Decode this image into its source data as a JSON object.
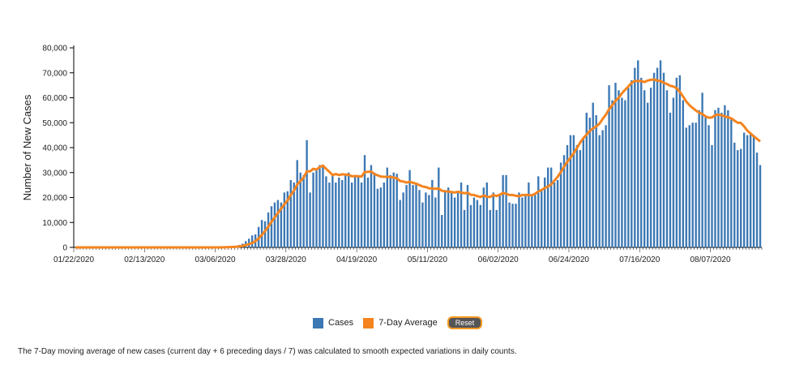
{
  "chart_data": {
    "type": "bar",
    "ylabel": "Number of New Cases",
    "ylim": [
      0,
      80000
    ],
    "yticks": [
      0,
      10000,
      20000,
      30000,
      40000,
      50000,
      60000,
      70000,
      80000
    ],
    "ytick_labels": [
      "0",
      "10,000",
      "20,000",
      "30,000",
      "40,000",
      "50,000",
      "60,000",
      "70,000",
      "80,000"
    ],
    "xtick_labels": [
      "01/22/2020",
      "02/13/2020",
      "03/06/2020",
      "03/28/2020",
      "04/19/2020",
      "05/11/2020",
      "06/02/2020",
      "06/24/2020",
      "07/16/2020",
      "08/07/2020"
    ],
    "start_date": "01/22/2020",
    "colors": {
      "cases": "#3c78b4",
      "average": "#f5841f"
    },
    "series": [
      {
        "name": "Cases",
        "values": [
          0,
          0,
          0,
          0,
          0,
          0,
          0,
          0,
          0,
          0,
          0,
          0,
          0,
          0,
          0,
          0,
          0,
          0,
          0,
          0,
          0,
          0,
          0,
          0,
          0,
          0,
          0,
          0,
          0,
          0,
          0,
          0,
          0,
          0,
          0,
          0,
          0,
          0,
          0,
          0,
          0,
          0,
          0,
          0,
          0,
          0,
          100,
          200,
          300,
          400,
          600,
          1000,
          1500,
          2500,
          3500,
          4800,
          5200,
          8200,
          11000,
          10500,
          14000,
          16500,
          18000,
          19000,
          18000,
          22000,
          22500,
          27000,
          26000,
          35000,
          30000,
          29000,
          43000,
          22000,
          30000,
          31000,
          33000,
          33000,
          28500,
          26000,
          29000,
          26000,
          28000,
          27000,
          29000,
          30000,
          26000,
          29000,
          29000,
          26000,
          37000,
          28000,
          33000,
          30000,
          23500,
          24000,
          26000,
          32000,
          29000,
          30000,
          29500,
          19000,
          22000,
          25000,
          31000,
          25000,
          26000,
          23000,
          18000,
          22000,
          21000,
          27000,
          20000,
          32000,
          13000,
          23000,
          24000,
          22000,
          20000,
          22000,
          26000,
          15000,
          25000,
          17000,
          20000,
          19000,
          17000,
          24000,
          26000,
          15000,
          22000,
          15000,
          21500,
          29000,
          29000,
          18000,
          17500,
          17500,
          22000,
          20000,
          21000,
          26000,
          21000,
          21000,
          28500,
          23000,
          28000,
          32000,
          32000,
          26000,
          27000,
          34000,
          37000,
          41000,
          45000,
          45000,
          41000,
          39000,
          44000,
          54000,
          52000,
          58000,
          53000,
          45000,
          47000,
          49000,
          65000,
          59000,
          66000,
          63000,
          60000,
          59000,
          64000,
          67000,
          72000,
          75000,
          68000,
          63000,
          58000,
          64000,
          70000,
          72000,
          75000,
          70000,
          63000,
          54000,
          60000,
          68000,
          69000,
          59000,
          48000,
          49000,
          50000,
          50000,
          55000,
          62000,
          53000,
          49000,
          41000,
          55000,
          56000,
          54000,
          57000,
          55000,
          52000,
          42000,
          39000,
          39500,
          46000,
          45000,
          46000,
          45000,
          38000,
          33000
        ]
      },
      {
        "name": "7-Day Average",
        "values": [
          0,
          0,
          0,
          0,
          0,
          0,
          0,
          0,
          0,
          0,
          0,
          0,
          0,
          0,
          0,
          0,
          0,
          0,
          0,
          0,
          0,
          0,
          0,
          0,
          0,
          0,
          0,
          0,
          0,
          0,
          0,
          0,
          0,
          0,
          0,
          0,
          0,
          0,
          0,
          0,
          0,
          0,
          0,
          0,
          0,
          0,
          50,
          80,
          120,
          180,
          260,
          400,
          600,
          900,
          1300,
          1800,
          2500,
          3600,
          5000,
          6500,
          8300,
          10200,
          12000,
          13800,
          15500,
          17300,
          18800,
          21000,
          22800,
          25200,
          26600,
          28000,
          30500,
          30500,
          31500,
          31200,
          32200,
          32800,
          31500,
          30300,
          29000,
          29400,
          29000,
          29300,
          29200,
          29100,
          28500,
          28600,
          28500,
          28400,
          30200,
          30300,
          30400,
          29400,
          28900,
          28400,
          28300,
          28300,
          28200,
          28000,
          27700,
          26600,
          26400,
          26000,
          26300,
          25900,
          25500,
          25000,
          24400,
          24200,
          23700,
          23600,
          23500,
          23600,
          22700,
          22500,
          22400,
          22200,
          22000,
          22300,
          22000,
          21700,
          21900,
          21100,
          21000,
          20600,
          20200,
          20800,
          20300,
          20200,
          21000,
          20600,
          21100,
          21800,
          21500,
          21000,
          21000,
          20700,
          20500,
          21000,
          21000,
          21000,
          20900,
          21500,
          22400,
          23000,
          23800,
          24400,
          25200,
          26800,
          28300,
          30200,
          32300,
          34300,
          36000,
          37800,
          39800,
          42000,
          43800,
          45200,
          46700,
          47700,
          48500,
          49600,
          51500,
          53200,
          55400,
          57000,
          58800,
          60000,
          61800,
          63200,
          64500,
          66000,
          66700,
          66700,
          66700,
          66300,
          66900,
          67200,
          67300,
          66900,
          66700,
          66000,
          65500,
          64800,
          64500,
          63800,
          62400,
          60500,
          58500,
          57000,
          55900,
          54900,
          54000,
          53500,
          52500,
          52000,
          52100,
          53000,
          53200,
          53000,
          52500,
          52200,
          51700,
          50800,
          50000,
          49900,
          48500,
          46800,
          45700,
          44500,
          43500,
          42500
        ]
      }
    ]
  },
  "legend": {
    "cases_label": "Cases",
    "average_label": "7-Day Average",
    "reset_label": "Reset"
  },
  "footnote": "The 7-Day moving average of new cases (current day + 6 preceding days / 7) was calculated to smooth expected variations in daily counts."
}
